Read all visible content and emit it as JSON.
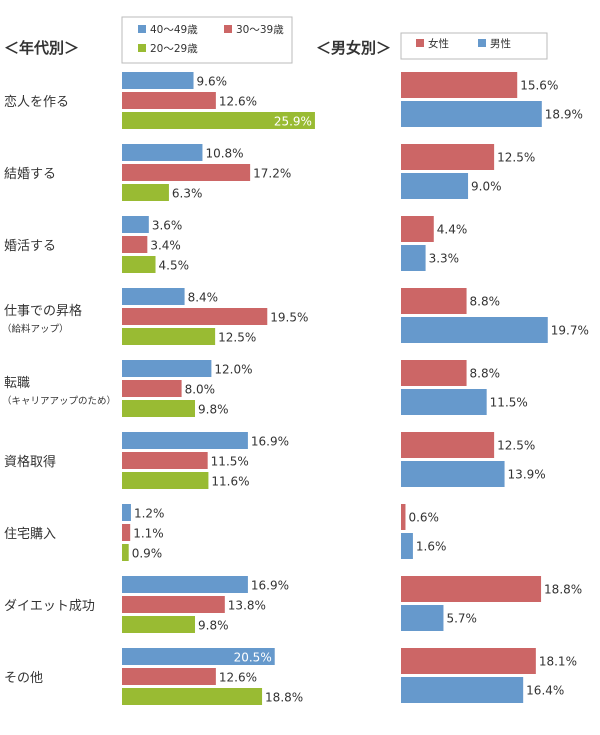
{
  "chart_data": [
    {
      "type": "bar",
      "orientation": "horizontal",
      "title": "＜年代別＞",
      "categories": [
        "恋人を作る",
        "結婚する",
        "婚活する",
        "仕事での昇格",
        "転職",
        "資格取得",
        "住宅購入",
        "ダイエット成功",
        "その他"
      ],
      "category_sublabels": [
        "",
        "",
        "",
        "（給料アップ）",
        "（キャリアアップのため）",
        "",
        "",
        "",
        ""
      ],
      "series": [
        {
          "name": "40～49歳",
          "color": "#6699cc",
          "values": [
            9.6,
            10.8,
            3.6,
            8.4,
            12.0,
            16.9,
            1.2,
            16.9,
            20.5
          ],
          "labels": [
            "9.6%",
            "10.8%",
            "3.6%",
            "8.4%",
            "12.0%",
            "16.9%",
            "1.2%",
            "16.9%",
            "20.5%"
          ]
        },
        {
          "name": "30～39歳",
          "color": "#cc6666",
          "values": [
            12.6,
            17.2,
            3.4,
            19.5,
            8.0,
            11.5,
            1.1,
            13.8,
            12.6
          ],
          "labels": [
            "12.6%",
            "17.2%",
            "3.4%",
            "19.5%",
            "8.0%",
            "11.5%",
            "1.1%",
            "13.8%",
            "12.6%"
          ]
        },
        {
          "name": "20～29歳",
          "color": "#99bb33",
          "values": [
            25.9,
            6.3,
            4.5,
            12.5,
            9.8,
            11.6,
            0.9,
            9.8,
            18.8
          ],
          "labels": [
            "25.9%",
            "6.3%",
            "4.5%",
            "12.5%",
            "9.8%",
            "11.6%",
            "0.9%",
            "9.8%",
            "18.8%"
          ]
        }
      ],
      "legend_position": "top",
      "grid": false
    },
    {
      "type": "bar",
      "orientation": "horizontal",
      "title": "＜男女別＞",
      "series": [
        {
          "name": "女性",
          "color": "#cc6666",
          "values": [
            15.6,
            12.5,
            4.4,
            8.8,
            8.8,
            12.5,
            0.6,
            18.8,
            18.1
          ],
          "labels": [
            "15.6%",
            "12.5%",
            "4.4%",
            "8.8%",
            "8.8%",
            "12.5%",
            "0.6%",
            "18.8%",
            "18.1%"
          ]
        },
        {
          "name": "男性",
          "color": "#6699cc",
          "values": [
            18.9,
            9.0,
            3.3,
            19.7,
            11.5,
            13.9,
            1.6,
            5.7,
            16.4
          ],
          "labels": [
            "18.9%",
            "9.0%",
            "3.3%",
            "19.7%",
            "11.5%",
            "13.9%",
            "1.6%",
            "5.7%",
            "16.4%"
          ]
        }
      ],
      "legend_position": "top",
      "grid": false
    }
  ]
}
